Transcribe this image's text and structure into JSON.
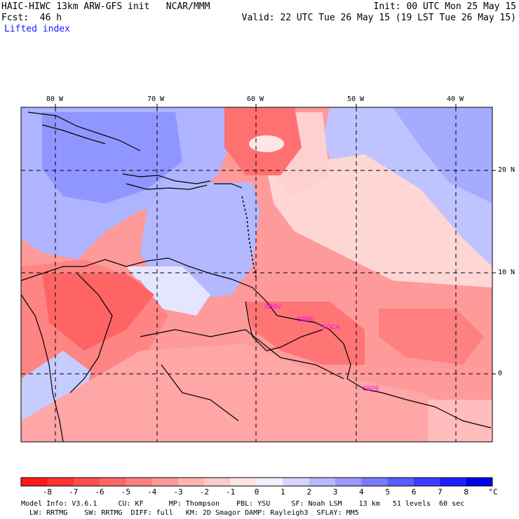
{
  "header": {
    "title": "HAIC-HIWC 13km ARW-GFS init   NCAR/MMM",
    "init": "Init: 00 UTC Mon 25 May 15",
    "fcst": "Fcst:  46 h",
    "valid": "Valid: 22 UTC Tue 26 May 15 (19 LST Tue 26 May 15)",
    "field": "Lifted index"
  },
  "map": {
    "lon_labels": [
      "80 W",
      "70 W",
      "60 W",
      "50 W",
      "40 W"
    ],
    "lat_labels": [
      "20 N",
      "10 N",
      "0"
    ],
    "stations": [
      {
        "id": "SBBV",
        "color": "#ff00ff"
      },
      {
        "id": "SBBE",
        "color": "#ff00ff"
      },
      {
        "id": "SOCA",
        "color": "#ff00ff"
      },
      {
        "id": "SBPE",
        "color": "#ff00ff"
      }
    ]
  },
  "colorbar": {
    "labels": [
      "-8",
      "-7",
      "-6",
      "-5",
      "-4",
      "-3",
      "-2",
      "-1",
      "0",
      "1",
      "2",
      "3",
      "4",
      "5",
      "6",
      "7",
      "8"
    ],
    "unit": "°C",
    "colors": [
      "#ff1a1a",
      "#ff3333",
      "#ff4d4d",
      "#ff6666",
      "#ff8080",
      "#ff9999",
      "#ffb3b3",
      "#ffcccc",
      "#ffe6e6",
      "#f0f0ff",
      "#d6d6ff",
      "#b8b8ff",
      "#9999ff",
      "#7a7aff",
      "#5c5cff",
      "#3d3dff",
      "#1f1fff",
      "#0000e6"
    ]
  },
  "footer": {
    "line1": "Model Info: V3.6.1     CU: KF      MP: Thompson    PBL: YSU     SF: Noah LSM    13 km   51 levels  60 sec",
    "line2": "  LW: RRTMG    SW: RRTMG  DIFF: full   KM: 2D Smagor DAMP: Rayleigh3  SFLAY: MM5"
  }
}
